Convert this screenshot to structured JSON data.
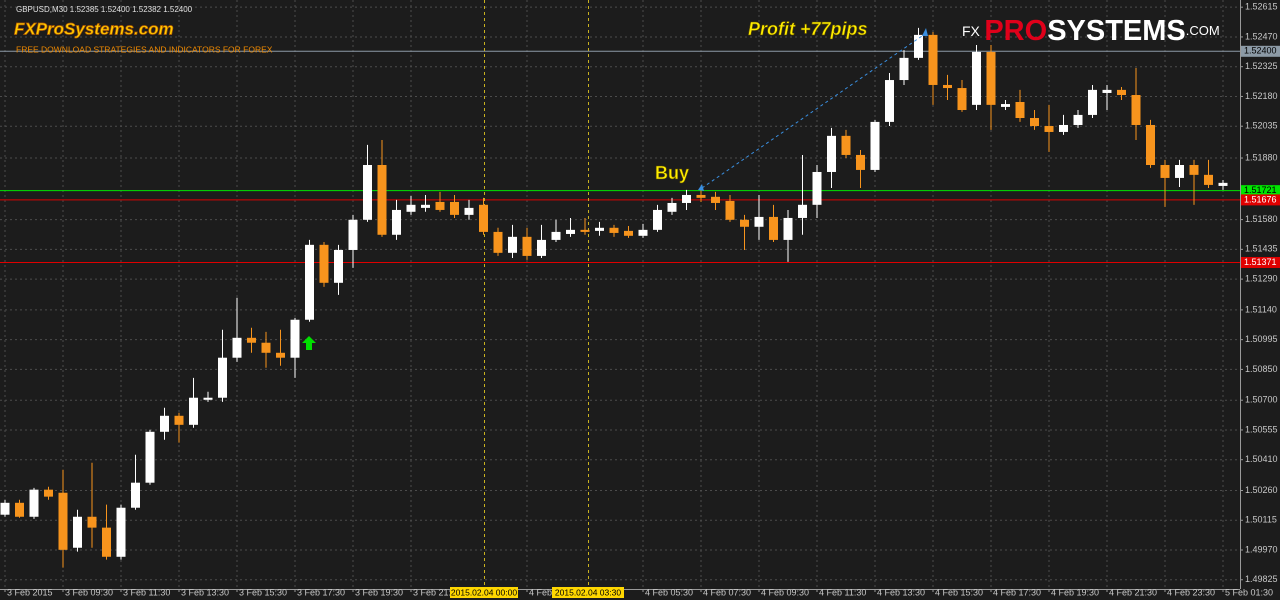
{
  "header": "GBPUSD,M30  1.52385 1.52400 1.52382 1.52400",
  "brand": {
    "name": "FXProSystems.com",
    "tagline": "FREE DOWNLOAD STRATEGIES AND INDICATORS FOR FOREX",
    "logo": {
      "fx": "FX",
      "pro": "PRO",
      "systems": "SYSTEMS",
      "com": ".COM"
    }
  },
  "chart_data": {
    "type": "candlestick",
    "categories": [
      "3 Feb 2015",
      null,
      null,
      null,
      "3 Feb 09:30",
      null,
      null,
      null,
      "3 Feb 11:30",
      null,
      null,
      null,
      "3 Feb 13:30",
      null,
      null,
      null,
      "3 Feb 15:30",
      null,
      null,
      null,
      "3 Feb 17:30",
      null,
      null,
      null,
      "3 Feb 19:30",
      null,
      null,
      null,
      "3 Feb 21:30",
      null,
      null,
      null,
      null,
      null,
      null,
      null,
      "4 Feb 01:30",
      null,
      null,
      null,
      null,
      null,
      null,
      null,
      "4 Feb 05:30",
      null,
      null,
      null,
      "4 Feb 07:30",
      null,
      null,
      null,
      "4 Feb 09:30",
      null,
      null,
      null,
      "4 Feb 11:30",
      null,
      null,
      null,
      "4 Feb 13:30",
      null,
      null,
      null,
      "4 Feb 15:30",
      null,
      null,
      null,
      "4 Feb 17:30",
      null,
      null,
      null,
      "4 Feb 19:30",
      null,
      null,
      null,
      "4 Feb 21:30",
      null,
      null,
      null,
      "4 Feb 23:30",
      null,
      null,
      null,
      "5 Feb 01:30"
    ],
    "open": [
      1.50142,
      1.502,
      1.50132,
      1.50264,
      1.50249,
      1.49981,
      1.50132,
      1.50079,
      1.49937,
      1.50176,
      1.50298,
      1.50546,
      1.50624,
      1.5058,
      1.50702,
      1.50712,
      1.50907,
      1.51004,
      1.5098,
      1.50931,
      1.50907,
      1.51092,
      1.51457,
      1.51272,
      1.51432,
      1.51579,
      1.51846,
      1.51506,
      1.51618,
      1.51637,
      1.51666,
      1.51666,
      1.51603,
      1.51652,
      1.5152,
      1.51418,
      1.51496,
      1.51403,
      1.51481,
      1.5151,
      1.5153,
      1.51525,
      1.5154,
      1.51525,
      1.51501,
      1.5153,
      1.51618,
      1.51661,
      1.517,
      1.51691,
      1.51671,
      1.51579,
      1.51545,
      1.51593,
      1.51481,
      1.51588,
      1.51652,
      1.51812,
      1.51988,
      1.51895,
      1.51822,
      1.52056,
      1.5226,
      1.52368,
      1.5248,
      1.52236,
      1.52221,
      1.52139,
      1.52397,
      1.52129,
      1.52153,
      1.52075,
      1.52036,
      1.52007,
      1.52041,
      1.5209,
      1.52197,
      1.52212,
      1.52187,
      1.52041,
      1.51846,
      1.51783,
      1.51846,
      1.51798,
      1.51744
    ],
    "high": [
      1.50215,
      1.50215,
      1.50273,
      1.50278,
      1.50361,
      1.50166,
      1.50395,
      1.50191,
      1.50191,
      1.50434,
      1.50556,
      1.50663,
      1.50639,
      1.50809,
      1.50741,
      1.51043,
      1.51199,
      1.51053,
      1.51033,
      1.51043,
      1.51101,
      1.51481,
      1.51471,
      1.51457,
      1.51603,
      1.51944,
      1.51968,
      1.51676,
      1.51695,
      1.517,
      1.51715,
      1.517,
      1.51676,
      1.51686,
      1.5154,
      1.51554,
      1.5154,
      1.51554,
      1.51579,
      1.51588,
      1.51588,
      1.51569,
      1.51554,
      1.51549,
      1.51559,
      1.51652,
      1.51686,
      1.51725,
      1.51734,
      1.51715,
      1.517,
      1.51603,
      1.517,
      1.51652,
      1.51627,
      1.51895,
      1.51846,
      1.52027,
      1.52017,
      1.51919,
      1.52066,
      1.52294,
      1.52406,
      1.52514,
      1.52494,
      1.52285,
      1.5226,
      1.52431,
      1.52431,
      1.52163,
      1.52212,
      1.52114,
      1.52139,
      1.5209,
      1.52114,
      1.52236,
      1.52236,
      1.52226,
      1.52319,
      1.52066,
      1.51871,
      1.51871,
      1.51871,
      1.51871,
      1.51773
    ],
    "low": [
      1.50132,
      1.50127,
      1.50122,
      1.50215,
      1.49884,
      1.49962,
      1.49981,
      1.49923,
      1.49923,
      1.50166,
      1.50288,
      1.50507,
      1.50493,
      1.50566,
      1.50692,
      1.50692,
      1.50887,
      1.50931,
      1.50858,
      1.50868,
      1.50809,
      1.51082,
      1.51252,
      1.51213,
      1.51345,
      1.51569,
      1.51496,
      1.51481,
      1.51603,
      1.51618,
      1.51618,
      1.51588,
      1.51579,
      1.51506,
      1.51403,
      1.51393,
      1.51384,
      1.51393,
      1.51471,
      1.51496,
      1.51506,
      1.51501,
      1.51496,
      1.51491,
      1.51491,
      1.5152,
      1.51603,
      1.51627,
      1.51666,
      1.51627,
      1.51569,
      1.51432,
      1.51481,
      1.51471,
      1.51374,
      1.51506,
      1.51588,
      1.51734,
      1.5188,
      1.51734,
      1.51812,
      1.52036,
      1.52236,
      1.52358,
      1.52139,
      1.52163,
      1.52105,
      1.52114,
      1.52017,
      1.52114,
      1.52056,
      1.52017,
      1.5191,
      1.51993,
      1.52027,
      1.52075,
      1.52114,
      1.52163,
      1.51968,
      1.51832,
      1.51642,
      1.51739,
      1.51652,
      1.51734,
      1.51725
    ],
    "close": [
      1.502,
      1.50132,
      1.50264,
      1.5023,
      1.49971,
      1.50132,
      1.50079,
      1.49937,
      1.50176,
      1.50298,
      1.50546,
      1.50624,
      1.5058,
      1.50712,
      1.50712,
      1.50907,
      1.51004,
      1.5098,
      1.50931,
      1.50907,
      1.51092,
      1.51457,
      1.51272,
      1.51432,
      1.51579,
      1.51846,
      1.51506,
      1.51627,
      1.51652,
      1.51652,
      1.51627,
      1.51603,
      1.51637,
      1.5152,
      1.51418,
      1.51496,
      1.51403,
      1.51481,
      1.5152,
      1.5153,
      1.5152,
      1.5154,
      1.51515,
      1.51501,
      1.5153,
      1.51627,
      1.51661,
      1.517,
      1.51686,
      1.51661,
      1.51579,
      1.51545,
      1.51593,
      1.51481,
      1.51588,
      1.51652,
      1.51812,
      1.51988,
      1.51895,
      1.51822,
      1.52056,
      1.5226,
      1.52368,
      1.5248,
      1.52236,
      1.52221,
      1.52114,
      1.52397,
      1.52139,
      1.52143,
      1.52075,
      1.52036,
      1.52007,
      1.52041,
      1.5209,
      1.52212,
      1.52212,
      1.52187,
      1.52041,
      1.51846,
      1.51783,
      1.51846,
      1.51798,
      1.51749,
      1.51759
    ],
    "up_color": "#ffffff",
    "down_color": "#f7941d",
    "ylim": [
      1.4978,
      1.5265
    ],
    "yticks": [
      {
        "value": 1.52615,
        "label": "1.52615"
      },
      {
        "value": 1.5247,
        "label": "1.52470"
      },
      {
        "value": 1.52325,
        "label": "1.52325"
      },
      {
        "value": 1.5218,
        "label": "1.52180"
      },
      {
        "value": 1.52035,
        "label": "1.52035"
      },
      {
        "value": 1.5188,
        "label": "1.51880"
      },
      {
        "value": 1.5158,
        "label": "1.51580"
      },
      {
        "value": 1.51435,
        "label": "1.51435"
      },
      {
        "value": 1.5129,
        "label": "1.51290"
      },
      {
        "value": 1.5114,
        "label": "1.51140"
      },
      {
        "value": 1.50995,
        "label": "1.50995"
      },
      {
        "value": 1.5085,
        "label": "1.50850"
      },
      {
        "value": 1.507,
        "label": "1.50700"
      },
      {
        "value": 1.50555,
        "label": "1.50555"
      },
      {
        "value": 1.5041,
        "label": "1.50410"
      },
      {
        "value": 1.5026,
        "label": "1.50260"
      },
      {
        "value": 1.50115,
        "label": "1.50115"
      },
      {
        "value": 1.4997,
        "label": "1.49970"
      },
      {
        "value": 1.49825,
        "label": "1.49825"
      }
    ],
    "grid": true,
    "levels": [
      {
        "value": 1.524,
        "label": "1.52400",
        "color": "#8c9aa6"
      },
      {
        "value": 1.51721,
        "label": "1.51721",
        "color": "#00e600"
      },
      {
        "value": 1.51676,
        "label": "1.51676",
        "color": "#e00000"
      },
      {
        "value": 1.51371,
        "label": "1.51371",
        "color": "#e00000"
      }
    ],
    "separators": [
      "2015.02.04 00:00",
      "2015.02.04 03:30"
    ],
    "annotations": {
      "buy": "Buy",
      "profit": "Profit +77pips"
    }
  }
}
